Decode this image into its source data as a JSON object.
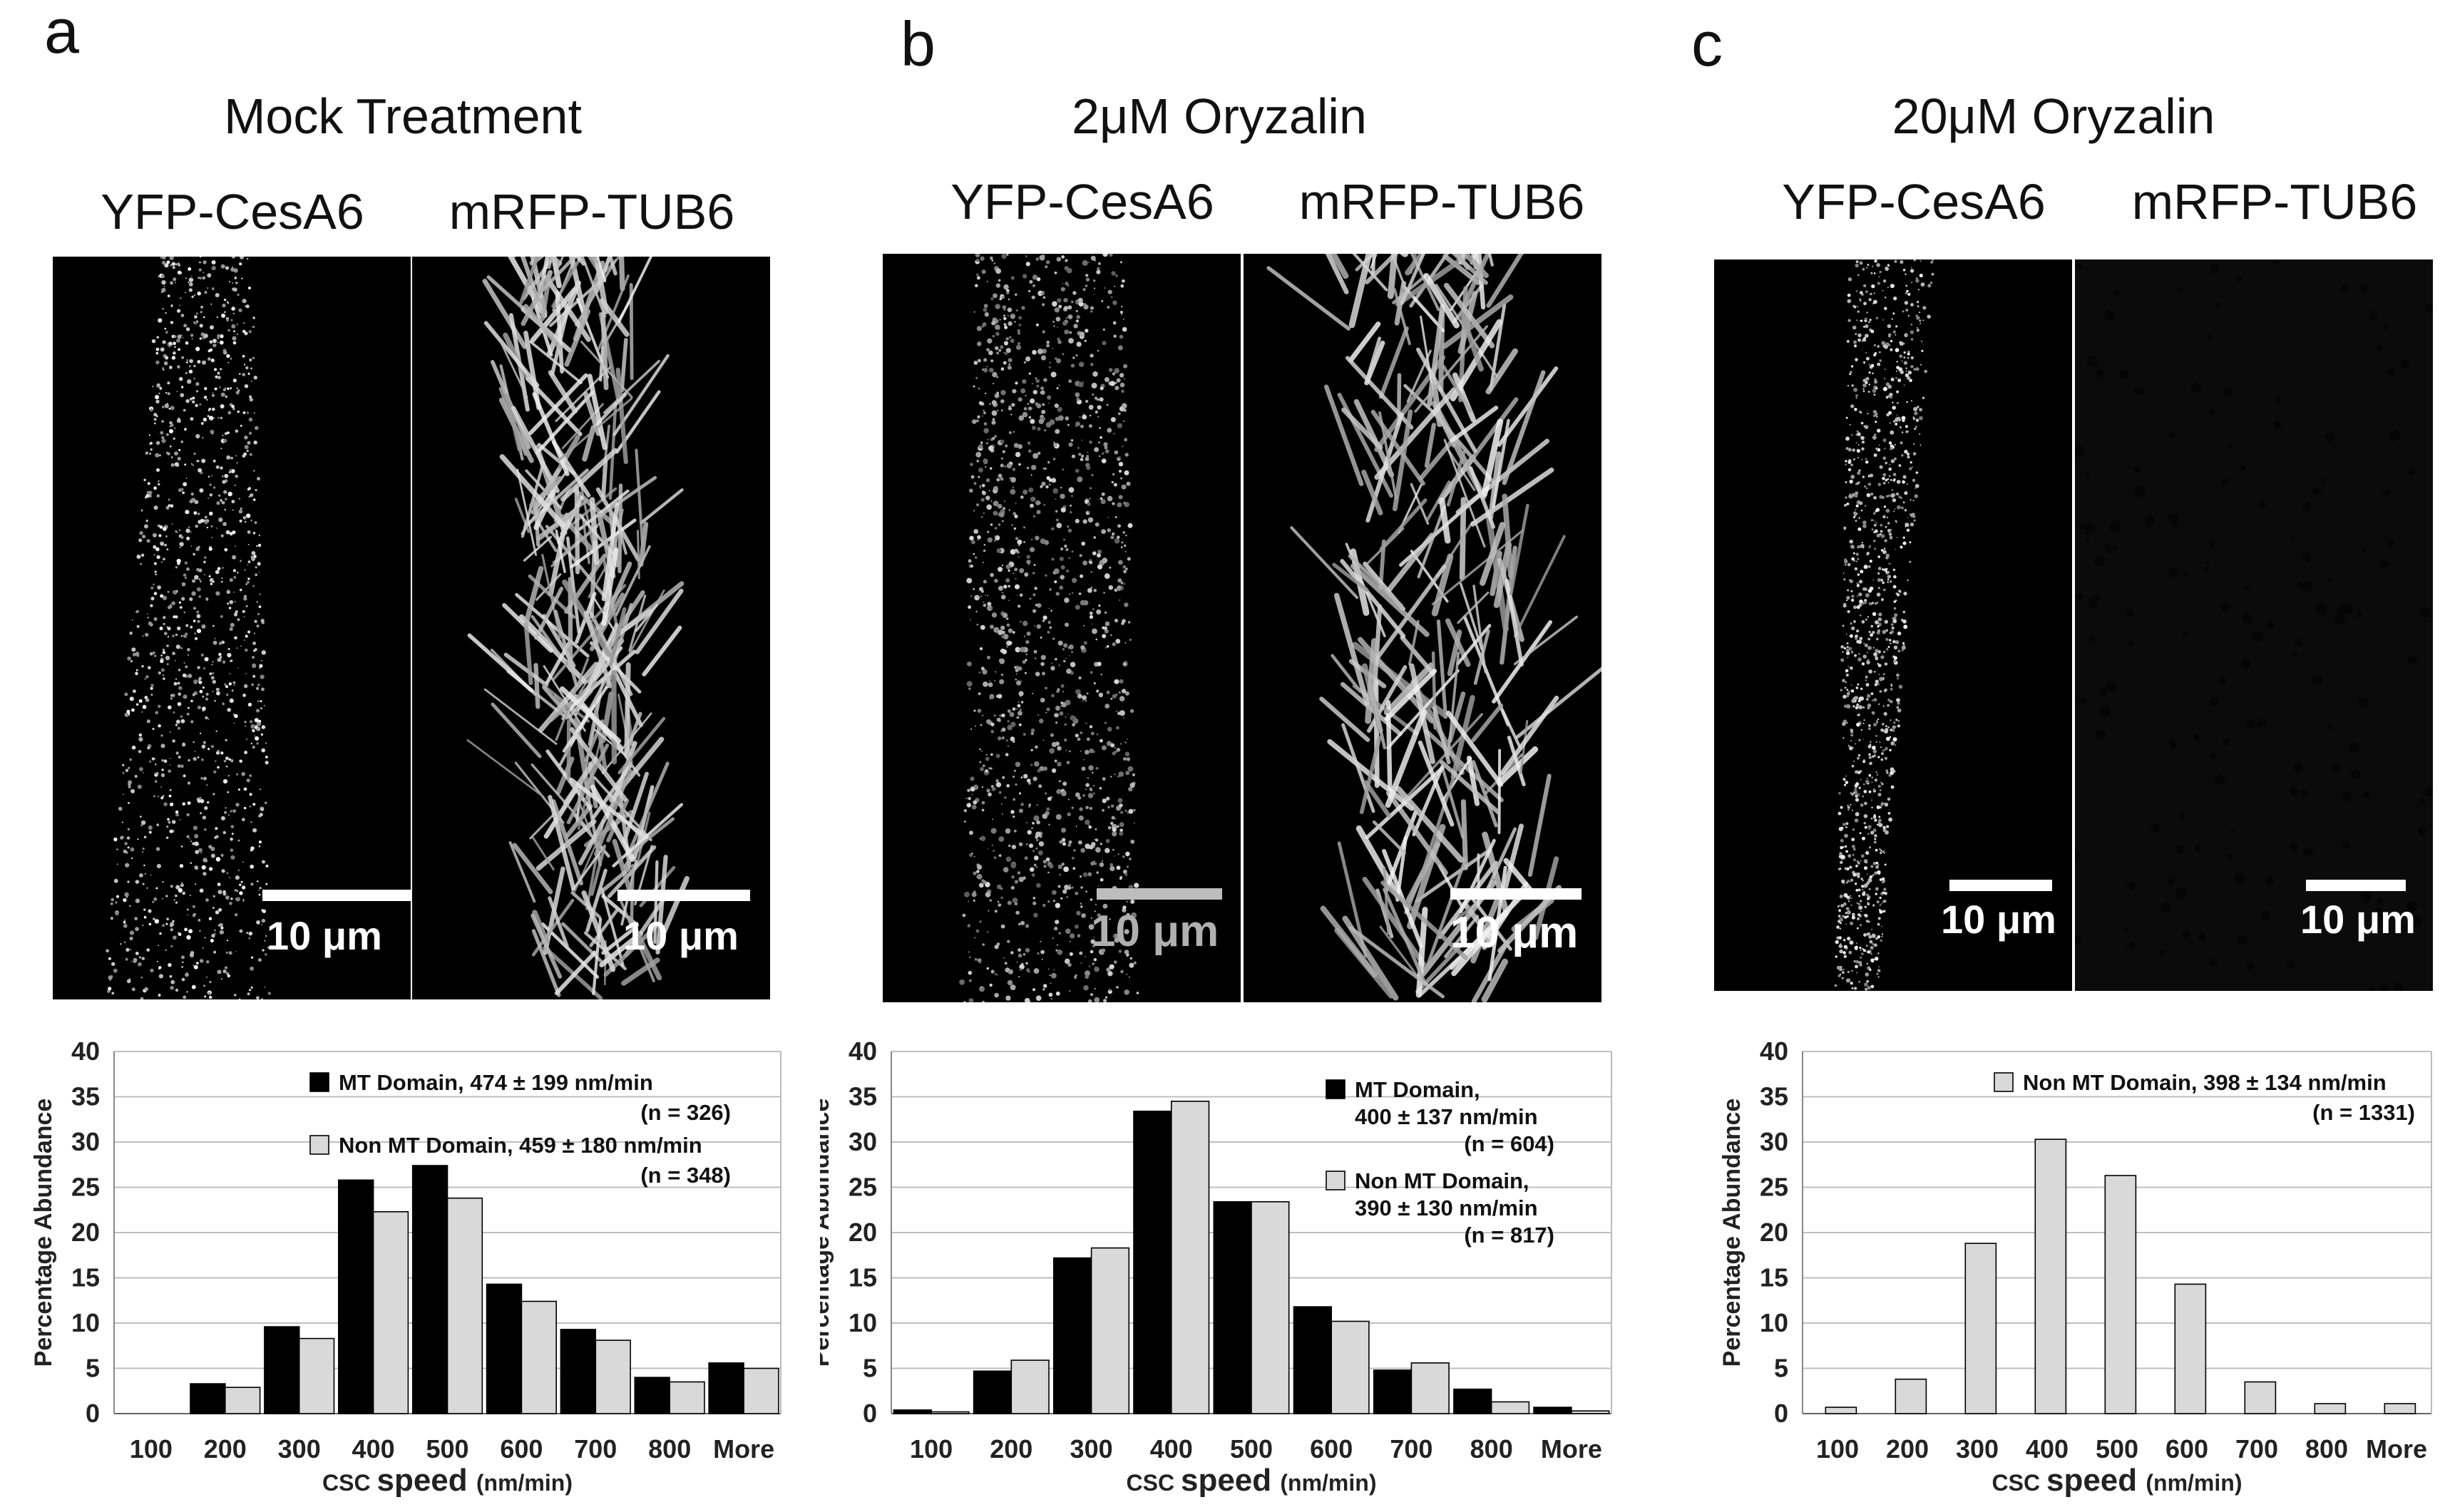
{
  "panels": [
    {
      "letter": "a",
      "title": "Mock Treatment",
      "channels": [
        "YFP-CesA6",
        "mRFP-TUB6"
      ],
      "scale_labels": [
        "10 μm",
        "10 μm"
      ]
    },
    {
      "letter": "b",
      "title": "2μM Oryzalin",
      "channels": [
        "YFP-CesA6",
        "mRFP-TUB6"
      ],
      "scale_labels": [
        "10 μm",
        "10 μm"
      ]
    },
    {
      "letter": "c",
      "title": "20μM Oryzalin",
      "channels": [
        "YFP-CesA6",
        "mRFP-TUB6"
      ],
      "scale_labels": [
        "10 μm",
        "10 μm"
      ]
    }
  ],
  "colors": {
    "mt": "#000000",
    "non_mt": "#d9d9d9",
    "grid": "#bfbfbf"
  },
  "chart_data": [
    {
      "type": "bar",
      "categories": [
        "100",
        "200",
        "300",
        "400",
        "500",
        "600",
        "700",
        "800",
        "More"
      ],
      "series": [
        {
          "name": "MT Domain",
          "values": [
            0,
            3.3,
            9.6,
            25.8,
            27.4,
            14.3,
            9.3,
            4.0,
            5.6
          ]
        },
        {
          "name": "Non MT Domain",
          "values": [
            0,
            2.9,
            8.3,
            22.3,
            23.8,
            12.4,
            8.1,
            3.5,
            5.0
          ]
        }
      ],
      "legend": [
        {
          "line1": "MT Domain,  474 ± 199 nm/min",
          "line2": "(n = 326)"
        },
        {
          "line1": "Non MT Domain,  459 ± 180 nm/min",
          "line2": "(n = 348)"
        }
      ],
      "xlabel_small": "CSC",
      "xlabel_big": "speed",
      "xlabel_unit": "(nm/min)",
      "ylabel": "Percentage Abundance",
      "ylim": [
        0,
        40
      ],
      "yticks": [
        "0",
        "5",
        "10",
        "15",
        "20",
        "25",
        "30",
        "35",
        "40"
      ],
      "grid": true
    },
    {
      "type": "bar",
      "categories": [
        "100",
        "200",
        "300",
        "400",
        "500",
        "600",
        "700",
        "800",
        "More"
      ],
      "series": [
        {
          "name": "MT Domain",
          "values": [
            0.4,
            4.7,
            17.2,
            33.4,
            23.4,
            11.8,
            4.8,
            2.7,
            0.7
          ]
        },
        {
          "name": "Non MT Domain",
          "values": [
            0.2,
            5.9,
            18.3,
            34.5,
            23.4,
            10.2,
            5.6,
            1.3,
            0.3
          ]
        }
      ],
      "legend": [
        {
          "line1": "MT Domain,",
          "line2": "400 ± 137 nm/min",
          "line3": "(n = 604)"
        },
        {
          "line1": "Non MT Domain,",
          "line2": "390 ± 130 nm/min",
          "line3": "(n = 817)"
        }
      ],
      "xlabel_small": "CSC",
      "xlabel_big": "speed",
      "xlabel_unit": "(nm/min)",
      "ylabel": "Percentage Abundance",
      "ylim": [
        0,
        40
      ],
      "yticks": [
        "0",
        "5",
        "10",
        "15",
        "20",
        "25",
        "30",
        "35",
        "40"
      ],
      "grid": true
    },
    {
      "type": "bar",
      "categories": [
        "100",
        "200",
        "300",
        "400",
        "500",
        "600",
        "700",
        "800",
        "More"
      ],
      "series": [
        {
          "name": "Non MT Domain",
          "values": [
            0.7,
            3.8,
            18.8,
            30.3,
            26.3,
            14.3,
            3.5,
            1.1,
            1.1
          ]
        }
      ],
      "legend": [
        {
          "line1": "Non MT Domain,  398 ± 134 nm/min",
          "line2": "(n = 1331)"
        }
      ],
      "xlabel_small": "CSC",
      "xlabel_big": "speed",
      "xlabel_unit": "(nm/min)",
      "ylabel": "Percentage Abundance",
      "ylim": [
        0,
        40
      ],
      "yticks": [
        "0",
        "5",
        "10",
        "15",
        "20",
        "25",
        "30",
        "35",
        "40"
      ],
      "grid": true
    }
  ]
}
